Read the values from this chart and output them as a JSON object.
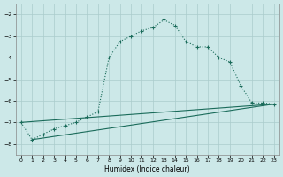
{
  "xlabel": "Humidex (Indice chaleur)",
  "ylabel": "",
  "bg_color": "#cce8e8",
  "grid_color": "#aacccc",
  "line_color": "#1a6b5a",
  "xlim": [
    -0.5,
    23.5
  ],
  "ylim": [
    -8.5,
    -1.5
  ],
  "yticks": [
    -8,
    -7,
    -6,
    -5,
    -4,
    -3,
    -2
  ],
  "xticks": [
    0,
    1,
    2,
    3,
    4,
    5,
    6,
    7,
    8,
    9,
    10,
    11,
    12,
    13,
    14,
    15,
    16,
    17,
    18,
    19,
    20,
    21,
    22,
    23
  ],
  "line1_x": [
    0,
    1,
    2,
    3,
    4,
    5,
    6,
    7,
    8,
    9,
    10,
    11,
    12,
    13,
    14,
    15,
    16,
    17,
    18,
    19,
    20,
    21,
    22,
    23
  ],
  "line1_y": [
    -7.0,
    -7.8,
    -7.55,
    -7.3,
    -7.15,
    -7.0,
    -6.75,
    -6.5,
    -4.0,
    -3.25,
    -3.0,
    -2.75,
    -2.6,
    -2.25,
    -2.5,
    -3.25,
    -3.5,
    -3.5,
    -4.0,
    -4.2,
    -5.3,
    -6.1,
    -6.1,
    -6.15
  ],
  "line2_x": [
    0,
    23
  ],
  "line2_y": [
    -7.0,
    -6.15
  ],
  "line3_x": [
    1,
    23
  ],
  "line3_y": [
    -7.8,
    -6.15
  ]
}
